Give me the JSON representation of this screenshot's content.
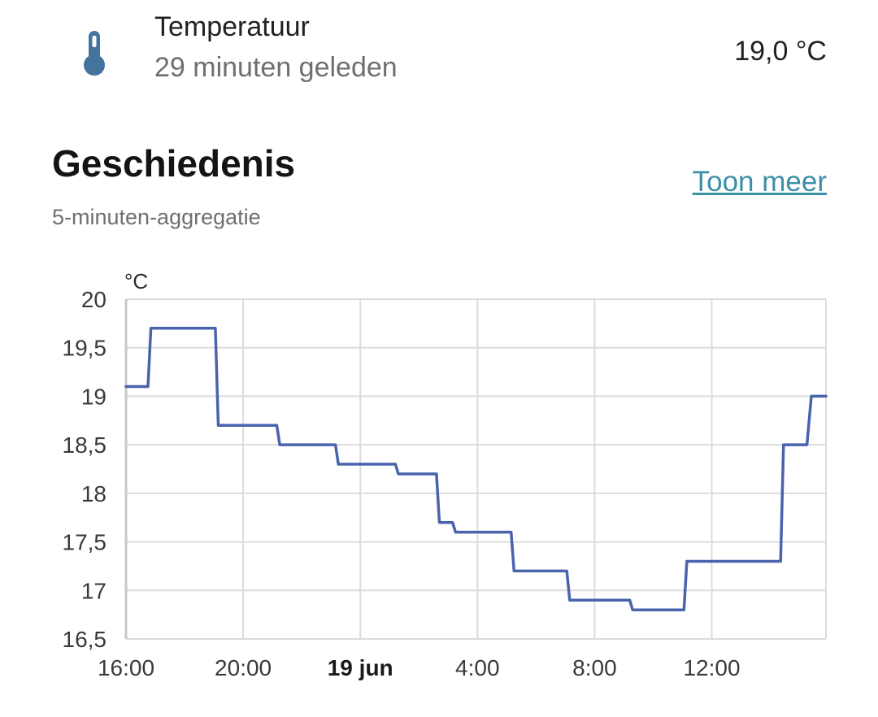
{
  "entity": {
    "name": "Temperatuur",
    "last_changed": "29 minuten geleden",
    "state": "19,0 °C",
    "icon": "thermometer-icon",
    "icon_color": "#44739e"
  },
  "history": {
    "title": "Geschiedenis",
    "show_more": "Toon meer",
    "subtitle": "5-minuten-aggregatie"
  },
  "chart_data": {
    "type": "line",
    "step": true,
    "unit": "°C",
    "line_color": "#4a63ad",
    "grid": true,
    "ylim": [
      16.5,
      20
    ],
    "y_ticks": [
      {
        "value": 20,
        "label": "20"
      },
      {
        "value": 19.5,
        "label": "19,5"
      },
      {
        "value": 19,
        "label": "19"
      },
      {
        "value": 18.5,
        "label": "18,5"
      },
      {
        "value": 18,
        "label": "18"
      },
      {
        "value": 17.5,
        "label": "17,5"
      },
      {
        "value": 17,
        "label": "17"
      },
      {
        "value": 16.5,
        "label": "16,5"
      }
    ],
    "x_unit": "hours since 18 jun 16:00",
    "xlim": [
      0,
      23.9
    ],
    "x_ticks": [
      {
        "value": 0,
        "label": "16:00",
        "bold": false
      },
      {
        "value": 4,
        "label": "20:00",
        "bold": false
      },
      {
        "value": 8,
        "label": "19 jun",
        "bold": true
      },
      {
        "value": 12,
        "label": "4:00",
        "bold": false
      },
      {
        "value": 16,
        "label": "8:00",
        "bold": false
      },
      {
        "value": 20,
        "label": "12:00",
        "bold": false
      }
    ],
    "series": [
      {
        "points": [
          [
            0.0,
            19.1
          ],
          [
            0.75,
            19.1
          ],
          [
            0.85,
            19.7
          ],
          [
            3.05,
            19.7
          ],
          [
            3.15,
            18.7
          ],
          [
            5.15,
            18.7
          ],
          [
            5.25,
            18.5
          ],
          [
            7.15,
            18.5
          ],
          [
            7.25,
            18.3
          ],
          [
            9.2,
            18.3
          ],
          [
            9.3,
            18.2
          ],
          [
            10.6,
            18.2
          ],
          [
            10.7,
            17.7
          ],
          [
            11.15,
            17.7
          ],
          [
            11.25,
            17.6
          ],
          [
            13.15,
            17.6
          ],
          [
            13.25,
            17.2
          ],
          [
            15.05,
            17.2
          ],
          [
            15.15,
            16.9
          ],
          [
            17.2,
            16.9
          ],
          [
            17.3,
            16.8
          ],
          [
            19.05,
            16.8
          ],
          [
            19.15,
            17.3
          ],
          [
            22.35,
            17.3
          ],
          [
            22.45,
            18.5
          ],
          [
            23.25,
            18.5
          ],
          [
            23.4,
            19.0
          ],
          [
            23.9,
            19.0
          ]
        ]
      }
    ]
  }
}
